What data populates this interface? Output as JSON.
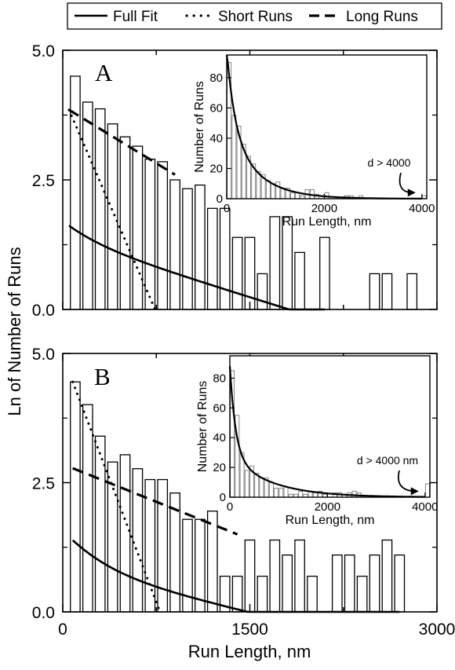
{
  "legend": {
    "placement": "top",
    "entries": [
      {
        "label": "Full Fit",
        "style": "solid"
      },
      {
        "label": "Short Runs",
        "style": "dotted"
      },
      {
        "label": "Long Runs",
        "style": "dashed"
      }
    ]
  },
  "chart_data": [
    {
      "type": "bar",
      "panel": "A",
      "shared_xlabel": "Run Length, nm",
      "ylabel": "Ln of Number of Runs",
      "xlim": [
        0,
        3000
      ],
      "ylim": [
        0,
        5
      ],
      "x_major_ticks": [
        0,
        1500,
        3000
      ],
      "y_ticks": [
        "0.0",
        "2.5",
        "5.0"
      ],
      "bin_width": 100,
      "bars": [
        {
          "x": 100,
          "y": 4.5
        },
        {
          "x": 200,
          "y": 4.0
        },
        {
          "x": 300,
          "y": 3.87
        },
        {
          "x": 400,
          "y": 3.58
        },
        {
          "x": 500,
          "y": 3.33
        },
        {
          "x": 600,
          "y": 3.15
        },
        {
          "x": 700,
          "y": 2.9
        },
        {
          "x": 800,
          "y": 2.85
        },
        {
          "x": 900,
          "y": 2.5
        },
        {
          "x": 1000,
          "y": 2.33
        },
        {
          "x": 1100,
          "y": 2.4
        },
        {
          "x": 1200,
          "y": 1.95
        },
        {
          "x": 1300,
          "y": 1.95
        },
        {
          "x": 1400,
          "y": 1.39
        },
        {
          "x": 1500,
          "y": 1.39
        },
        {
          "x": 1600,
          "y": 0.69
        },
        {
          "x": 1700,
          "y": 1.79
        },
        {
          "x": 1800,
          "y": 1.79
        },
        {
          "x": 1900,
          "y": 1.1
        },
        {
          "x": 2100,
          "y": 1.39
        },
        {
          "x": 2500,
          "y": 0.69
        },
        {
          "x": 2600,
          "y": 0.69
        },
        {
          "x": 2800,
          "y": 0.69
        }
      ],
      "series": [
        {
          "style": "solid",
          "kind": "two-exp",
          "x_range": [
            50,
            2100
          ],
          "params": {
            "a1": 1.6,
            "k1": 0.0045,
            "a2": 3.9,
            "k2": 0.00075
          }
        },
        {
          "style": "dotted",
          "kind": "line",
          "points": [
            [
              50,
              3.85
            ],
            [
              740,
              0
            ]
          ]
        },
        {
          "style": "dashed",
          "kind": "line",
          "points": [
            [
              50,
              3.85
            ],
            [
              900,
              2.6
            ]
          ]
        }
      ],
      "inset": {
        "xlabel": "Run Length, nm",
        "ylabel": "Number of Runs",
        "xlim": [
          0,
          4100
        ],
        "ylim": [
          0,
          95
        ],
        "x_ticks": [
          "0",
          "2000",
          "4000"
        ],
        "y_ticks": [
          "0",
          "20",
          "40",
          "60",
          "80"
        ],
        "annotation": "d > 4000",
        "bin_width": 100,
        "bars": [
          90,
          55,
          48,
          36,
          28,
          23,
          18,
          16,
          12,
          10,
          11,
          7,
          7,
          4,
          4,
          2,
          6,
          6,
          3,
          0,
          4,
          0,
          0,
          0,
          2,
          2,
          0,
          2,
          0,
          0,
          0,
          0,
          0,
          0,
          0,
          0,
          0,
          0,
          0,
          0,
          2
        ],
        "fit": {
          "kind": "two-exp",
          "x_range": [
            0,
            4000
          ],
          "params": {
            "a1": 50,
            "k1": 0.006,
            "a2": 48,
            "k2": 0.0017
          }
        }
      }
    },
    {
      "type": "bar",
      "panel": "B",
      "xlabel": "Run Length, nm",
      "ylabel": "Ln of Number of Runs",
      "xlim": [
        0,
        3000
      ],
      "ylim": [
        0,
        5
      ],
      "x_major_ticks": [
        0,
        1500,
        3000
      ],
      "x_tick_labels": [
        "0",
        "1500",
        "3000"
      ],
      "y_ticks": [
        "0.0",
        "2.5",
        "5.0"
      ],
      "bin_width": 100,
      "bars": [
        {
          "x": 100,
          "y": 4.45
        },
        {
          "x": 200,
          "y": 4.01
        },
        {
          "x": 300,
          "y": 3.4
        },
        {
          "x": 400,
          "y": 2.9
        },
        {
          "x": 500,
          "y": 3.04
        },
        {
          "x": 600,
          "y": 2.77
        },
        {
          "x": 700,
          "y": 2.56
        },
        {
          "x": 800,
          "y": 2.56
        },
        {
          "x": 900,
          "y": 2.3
        },
        {
          "x": 1000,
          "y": 1.79
        },
        {
          "x": 1100,
          "y": 1.79
        },
        {
          "x": 1200,
          "y": 1.95
        },
        {
          "x": 1300,
          "y": 0.69
        },
        {
          "x": 1400,
          "y": 0.69
        },
        {
          "x": 1500,
          "y": 1.39
        },
        {
          "x": 1600,
          "y": 0.69
        },
        {
          "x": 1700,
          "y": 1.39
        },
        {
          "x": 1800,
          "y": 1.1
        },
        {
          "x": 1900,
          "y": 1.39
        },
        {
          "x": 2000,
          "y": 0.69
        },
        {
          "x": 2200,
          "y": 1.1
        },
        {
          "x": 2300,
          "y": 1.1
        },
        {
          "x": 2400,
          "y": 0.69
        },
        {
          "x": 2500,
          "y": 1.1
        },
        {
          "x": 2600,
          "y": 1.39
        },
        {
          "x": 2700,
          "y": 1.1
        }
      ],
      "series": [
        {
          "style": "solid",
          "kind": "two-exp",
          "x_range": [
            80,
            2700
          ],
          "params": {
            "a1": 2.45,
            "k1": 0.0042,
            "a2": 2.35,
            "k2": 0.00058
          }
        },
        {
          "style": "dotted",
          "kind": "line",
          "points": [
            [
              80,
              4.45
            ],
            [
              780,
              0
            ]
          ]
        },
        {
          "style": "dashed",
          "kind": "line",
          "points": [
            [
              80,
              2.78
            ],
            [
              1400,
              1.5
            ]
          ]
        }
      ],
      "inset": {
        "xlabel": "Run Length, nm",
        "ylabel": "Number of Runs",
        "xlim": [
          0,
          4100
        ],
        "ylim": [
          0,
          95
        ],
        "x_ticks": [
          "0",
          "2000",
          "4000"
        ],
        "y_ticks": [
          "0",
          "20",
          "40",
          "60",
          "80"
        ],
        "annotation": "d > 4000 nm",
        "bin_width": 100,
        "bars": [
          85,
          55,
          30,
          18,
          21,
          16,
          13,
          13,
          10,
          6,
          6,
          7,
          2,
          2,
          4,
          2,
          4,
          3,
          4,
          2,
          0,
          3,
          3,
          2,
          3,
          4,
          3,
          0,
          0,
          0,
          0,
          0,
          0,
          0,
          0,
          0,
          0,
          0,
          0,
          0,
          9
        ],
        "fit": {
          "kind": "two-exp",
          "x_range": [
            0,
            4000
          ],
          "params": {
            "a1": 60,
            "k1": 0.0085,
            "a2": 28,
            "k2": 0.0012
          }
        }
      }
    }
  ]
}
